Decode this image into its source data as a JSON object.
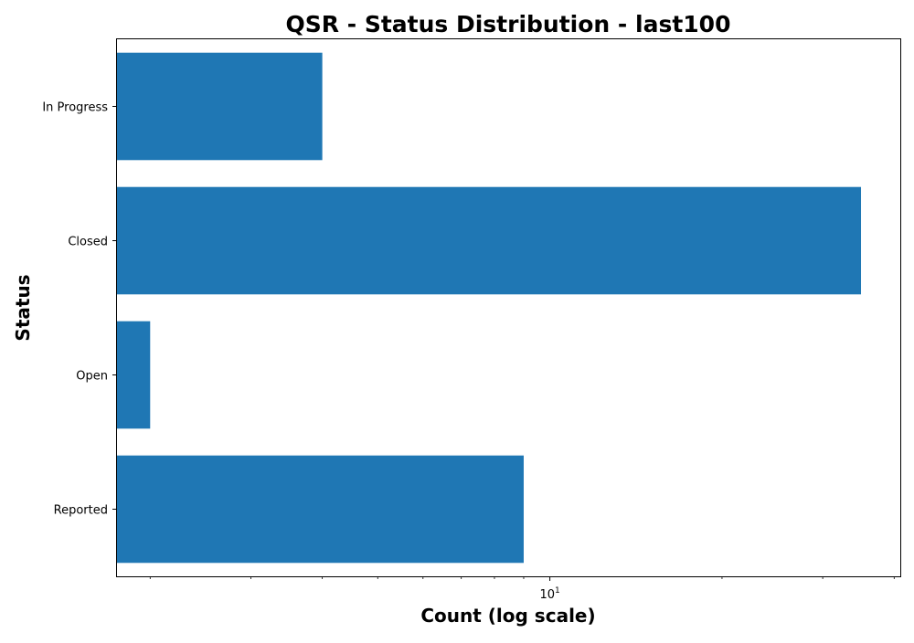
{
  "chart_data": {
    "type": "bar",
    "orientation": "horizontal",
    "title": "QSR - Status Distribution - last100",
    "xlabel": "Count (log scale)",
    "ylabel": "Status",
    "x_scale": "log",
    "xlim": [
      1.75,
      41
    ],
    "categories": [
      "In Progress",
      "Closed",
      "Open",
      "Reported"
    ],
    "values": [
      4,
      35,
      2,
      9
    ],
    "major_ticks": [
      {
        "value": 10,
        "base": "10",
        "exp": "1"
      }
    ],
    "minor_ticks": [
      2,
      3,
      4,
      5,
      6,
      7,
      8,
      9,
      20,
      30,
      40
    ],
    "bar_color": "#1f77b4",
    "grid": false,
    "legend": "none"
  }
}
